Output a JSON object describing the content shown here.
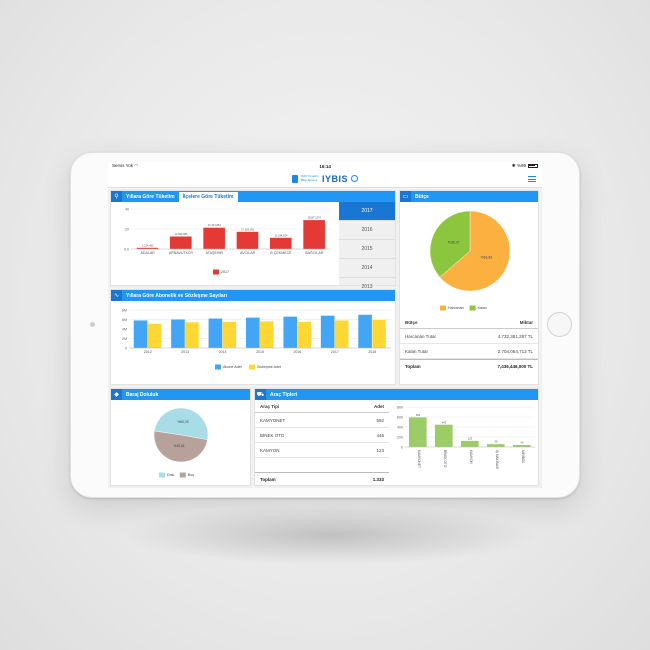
{
  "status": {
    "carrier": "Servis Yok",
    "time": "16:14",
    "battery": "%99"
  },
  "app": {
    "subtitle": "İSKİ Yönetim Bilgi Sistemi",
    "title": "IYBIS"
  },
  "consumption": {
    "tab1": "Yıllara Göre Tüketim",
    "tab2": "İlçelere Göre Tüketim",
    "years": [
      "2017",
      "2016",
      "2015",
      "2014",
      "2013"
    ],
    "active_year": "2017",
    "legend": "2017"
  },
  "subscribers": {
    "title": "Yıllara Göre Abonelik ve Sözleşme Sayıları",
    "legend_a": "Abone Adet",
    "legend_b": "Sözleşme Adet"
  },
  "budget": {
    "title": "Bütçe",
    "legend_spent": "Harcanan",
    "legend_remaining": "Kalan",
    "col_budget": "Bütçe",
    "col_amount": "Miktar",
    "rows": [
      {
        "label": "Harcanan Tutar",
        "value": "4.732,381,287 TL"
      },
      {
        "label": "Kalan Tutar",
        "value": "2.704,064,713 TL"
      }
    ],
    "total_label": "Toplam",
    "total_value": "7,436,446,000 TL"
  },
  "dam": {
    "title": "Baraj Doluluk",
    "legend_full": "Dolu",
    "legend_empty": "Boş"
  },
  "vehicles": {
    "title": "Araç Tipleri",
    "col_type": "Araç Tipi",
    "col_count": "Adet",
    "rows": [
      {
        "label": "KAMYONET",
        "value": "592"
      },
      {
        "label": "BİNEK OTO",
        "value": "445"
      },
      {
        "label": "KAMYON",
        "value": "123"
      }
    ],
    "total_label": "Toplam",
    "total_value": "1.333"
  },
  "chart_data": [
    {
      "type": "bar",
      "categories": [
        "ADALAR",
        "ARNAVUTKÖY",
        "ATAŞEHİR",
        "AVCILAR",
        "B.ÇEKMECE",
        "BAĞCILAR"
      ],
      "series": [
        {
          "name": "2017",
          "values": [
            1.2,
            12.5,
            21.3,
            17.2,
            11.2,
            28.9
          ]
        }
      ],
      "ylim": [
        0,
        40
      ],
      "yticks": [
        "0,0",
        "20",
        "40"
      ],
      "data_labels": [
        "1,224,452",
        "12,543,086",
        "21,331,854",
        "17,163,091",
        "11,184,534",
        "28,871,574"
      ],
      "colors": [
        "#e53935"
      ]
    },
    {
      "type": "bar",
      "categories": [
        "2012",
        "2013",
        "2014",
        "2015",
        "2016",
        "2017",
        "2018"
      ],
      "series": [
        {
          "name": "Abone Adet",
          "values": [
            5.8,
            6.0,
            6.2,
            6.4,
            6.6,
            6.8,
            7.0
          ]
        },
        {
          "name": "Sözleşme Adet",
          "values": [
            5.1,
            5.4,
            5.5,
            5.6,
            5.5,
            5.8,
            5.9
          ]
        }
      ],
      "ylim": [
        0,
        8
      ],
      "yticks": [
        "0",
        "2M",
        "4M",
        "6M",
        "8M"
      ],
      "colors": [
        "#42a5f5",
        "#fdd835"
      ]
    },
    {
      "type": "pie",
      "labels": [
        "Harcanan",
        "Kalan"
      ],
      "values": [
        63.63,
        36.37
      ],
      "data_labels": [
        "%63,63",
        "%36,37"
      ],
      "colors": [
        "#fbb040",
        "#8cc63f"
      ]
    },
    {
      "type": "pie",
      "labels": [
        "Dolu",
        "Boş"
      ],
      "values": [
        50.39,
        49.61
      ],
      "data_labels": [
        "%50,39",
        "%49,61"
      ],
      "colors": [
        "#a8dde8",
        "#b7a29b"
      ]
    },
    {
      "type": "bar",
      "categories": [
        "KAMYONET",
        "BİNEK OTO",
        "KAMYON",
        "İŞ MAKİNASI",
        "MİNİBÜS"
      ],
      "series": [
        {
          "name": "Adet",
          "values": [
            592,
            445,
            123,
            56,
            40
          ]
        }
      ],
      "ylim": [
        0,
        800
      ],
      "yticks": [
        "0",
        "200",
        "400",
        "600",
        "800"
      ],
      "colors": [
        "#9ccc65"
      ]
    }
  ]
}
